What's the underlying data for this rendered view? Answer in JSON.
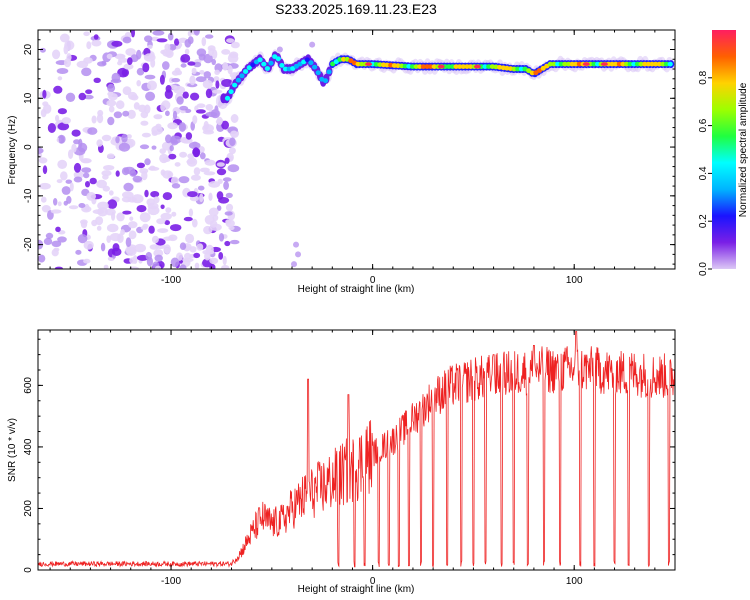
{
  "colors": {
    "spectrogram_background": "#ffffff",
    "snr_line": "#ee2222",
    "frame": "#000000",
    "colorbar_stops": [
      "#dcc8f5",
      "#7a1fe6",
      "#1a14ff",
      "#00b4ff",
      "#00ffff",
      "#20ff40",
      "#9dff00",
      "#ffd200",
      "#ff6000",
      "#ff1e60"
    ]
  },
  "chart_data": [
    {
      "type": "heatmap",
      "title": "S233.2025.169.11.23.E23",
      "xlabel": "Height of straight line (km)",
      "ylabel": "Frequency (Hz)",
      "xlim": [
        -166,
        150
      ],
      "ylim": [
        -25,
        24
      ],
      "x_ticks": [
        -100,
        0,
        100
      ],
      "y_ticks": [
        -20,
        -10,
        0,
        10,
        20
      ],
      "grid": false,
      "colorbar": {
        "label": "Normalized spectral amplitude",
        "range": [
          0.0,
          1.0
        ],
        "ticks": [
          0.0,
          0.2,
          0.4,
          0.6,
          0.8
        ]
      },
      "ridge": {
        "description_values": "dominant frequency vs height",
        "x": [
          -72,
          -68,
          -62,
          -56,
          -52,
          -48,
          -44,
          -40,
          -36,
          -32,
          -28,
          -24,
          -20,
          -16,
          -12,
          -8,
          0,
          20,
          40,
          60,
          70,
          76,
          80,
          84,
          88,
          95,
          100,
          120,
          140,
          148
        ],
        "y": [
          10,
          13,
          16,
          18,
          16,
          19,
          16,
          16,
          17,
          18,
          16,
          13,
          17,
          18,
          18,
          17,
          17,
          16.5,
          16.5,
          16.5,
          16,
          16,
          15,
          16,
          17,
          17,
          17,
          17,
          17,
          17
        ]
      }
    },
    {
      "type": "line",
      "xlabel": "Height of straight line (km)",
      "ylabel": "SNR (10 * v/v)",
      "xlim": [
        -166,
        150
      ],
      "ylim": [
        0,
        780
      ],
      "x_ticks": [
        -100,
        0,
        100
      ],
      "y_ticks": [
        0,
        200,
        400,
        600
      ],
      "grid": false,
      "envelope": {
        "x": [
          -166,
          -70,
          -65,
          -60,
          -55,
          -50,
          -45,
          -40,
          -35,
          -30,
          -25,
          -20,
          -15,
          -10,
          -5,
          0,
          10,
          20,
          30,
          40,
          50,
          60,
          70,
          80,
          90,
          100,
          110,
          120,
          130,
          140,
          150
        ],
        "y": [
          20,
          20,
          60,
          120,
          170,
          150,
          160,
          200,
          230,
          250,
          270,
          290,
          310,
          330,
          350,
          380,
          420,
          490,
          560,
          600,
          620,
          630,
          640,
          650,
          650,
          655,
          650,
          640,
          640,
          630,
          630
        ]
      },
      "dropouts_x": [
        -17,
        -9,
        -4,
        3,
        8,
        13,
        18,
        24,
        30,
        37,
        44,
        50,
        56,
        64,
        70,
        77,
        85,
        93,
        103,
        110,
        120,
        127,
        137,
        147
      ],
      "spikes": [
        {
          "x": -32,
          "y": 620
        },
        {
          "x": -12,
          "y": 570
        },
        {
          "x": 101,
          "y": 775
        },
        {
          "x": 80,
          "y": 730
        },
        {
          "x": 60,
          "y": 700
        }
      ]
    }
  ]
}
